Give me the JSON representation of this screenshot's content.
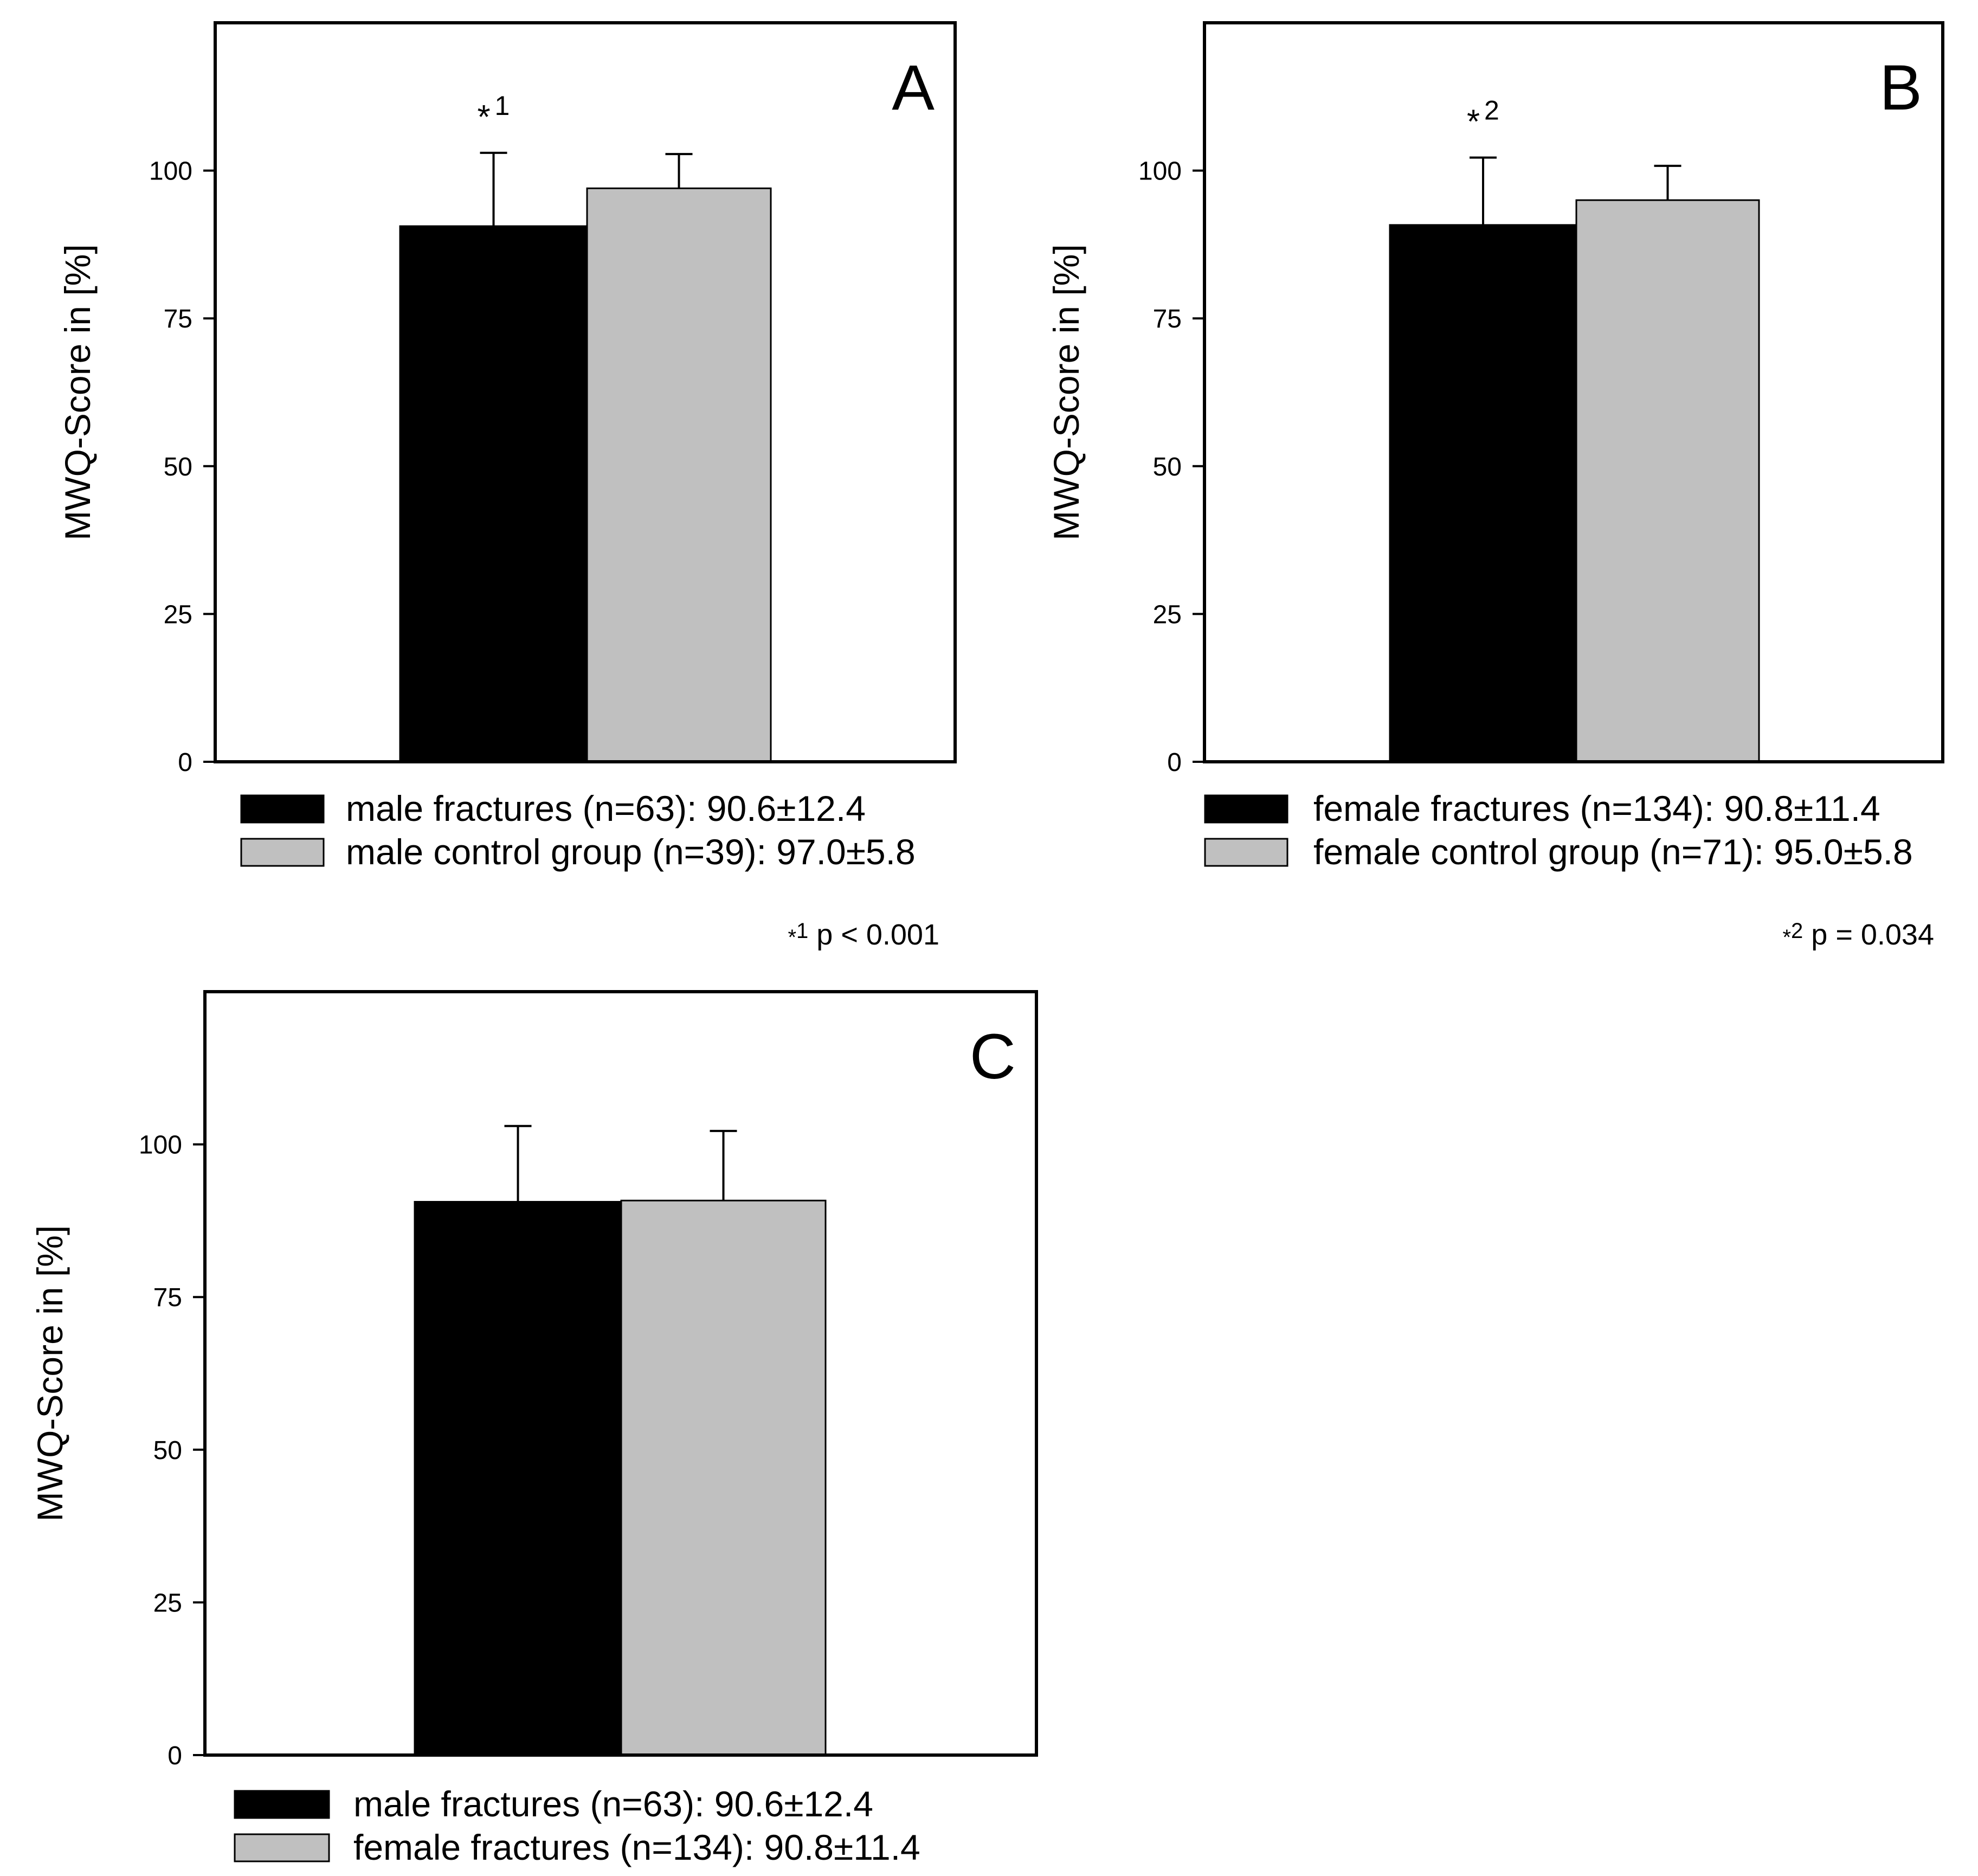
{
  "chart_data": [
    {
      "type": "bar",
      "panel": "A",
      "ylabel": "MWQ-Score in [%]",
      "ylim": [
        0,
        125
      ],
      "yticks": [
        0,
        25,
        50,
        75,
        100
      ],
      "ytick_labels": [
        "0",
        "25",
        "50",
        "75",
        "100"
      ],
      "series": [
        {
          "name": "male fractures (n=63): 90.6±12.4",
          "value": 90.6,
          "error": 12.4,
          "color": "#000000"
        },
        {
          "name": "male control group (n=39): 97.0±5.8",
          "value": 97.0,
          "error": 5.8,
          "color": "#c0c0c0"
        }
      ],
      "annotation": {
        "symbol": "*",
        "sup": "1"
      },
      "footnote": {
        "symbol": "*",
        "sup": "1",
        "text": "p < 0.001"
      }
    },
    {
      "type": "bar",
      "panel": "B",
      "ylabel": "MWQ-Score in [%]",
      "ylim": [
        0,
        125
      ],
      "yticks": [
        0,
        25,
        50,
        75,
        100
      ],
      "ytick_labels": [
        "0",
        "25",
        "50",
        "75",
        "100"
      ],
      "series": [
        {
          "name": "female fractures (n=134): 90.8±11.4",
          "value": 90.8,
          "error": 11.4,
          "color": "#000000"
        },
        {
          "name": "female control group (n=71): 95.0±5.8",
          "value": 95.0,
          "error": 5.8,
          "color": "#c0c0c0"
        }
      ],
      "annotation": {
        "symbol": "*",
        "sup": "2"
      },
      "footnote": {
        "symbol": "*",
        "sup": "2",
        "text": "p = 0.034"
      }
    },
    {
      "type": "bar",
      "panel": "C",
      "ylabel": "MWQ-Score in [%]",
      "ylim": [
        0,
        125
      ],
      "yticks": [
        0,
        25,
        50,
        75,
        100
      ],
      "ytick_labels": [
        "0",
        "25",
        "50",
        "75",
        "100"
      ],
      "series": [
        {
          "name": "male fractures (n=63): 90.6±12.4",
          "value": 90.6,
          "error": 12.4,
          "color": "#000000"
        },
        {
          "name": "female fractures (n=134): 90.8±11.4",
          "value": 90.8,
          "error": 11.4,
          "color": "#c0c0c0"
        }
      ],
      "annotation": null,
      "footnote": null
    }
  ]
}
